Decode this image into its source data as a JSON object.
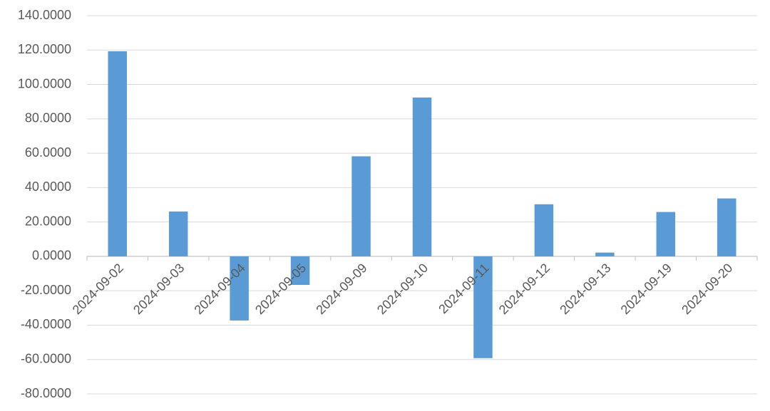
{
  "chart_data": {
    "type": "bar",
    "categories": [
      "2024-09-02",
      "2024-09-03",
      "2024-09-04",
      "2024-09-05",
      "2024-09-09",
      "2024-09-10",
      "2024-09-11",
      "2024-09-12",
      "2024-09-13",
      "2024-09-19",
      "2024-09-20"
    ],
    "values": [
      119.3,
      26.1,
      -37.3,
      -16.6,
      58.2,
      92.4,
      -59.2,
      30.3,
      2.2,
      25.8,
      33.7
    ],
    "color": "#5b9bd5",
    "ylim": [
      -80,
      140
    ],
    "yticks": [
      {
        "value": -80,
        "label": "-80.0000"
      },
      {
        "value": -60,
        "label": "-60.0000"
      },
      {
        "value": -40,
        "label": "-40.0000"
      },
      {
        "value": -20,
        "label": "-20.0000"
      },
      {
        "value": 0,
        "label": "0.0000"
      },
      {
        "value": 20,
        "label": "20.0000"
      },
      {
        "value": 40,
        "label": "40.0000"
      },
      {
        "value": 60,
        "label": "60.0000"
      },
      {
        "value": 80,
        "label": "80.0000"
      },
      {
        "value": 100,
        "label": "100.0000"
      },
      {
        "value": 120,
        "label": "120.0000"
      },
      {
        "value": 140,
        "label": "140.0000"
      }
    ],
    "grid": true
  }
}
